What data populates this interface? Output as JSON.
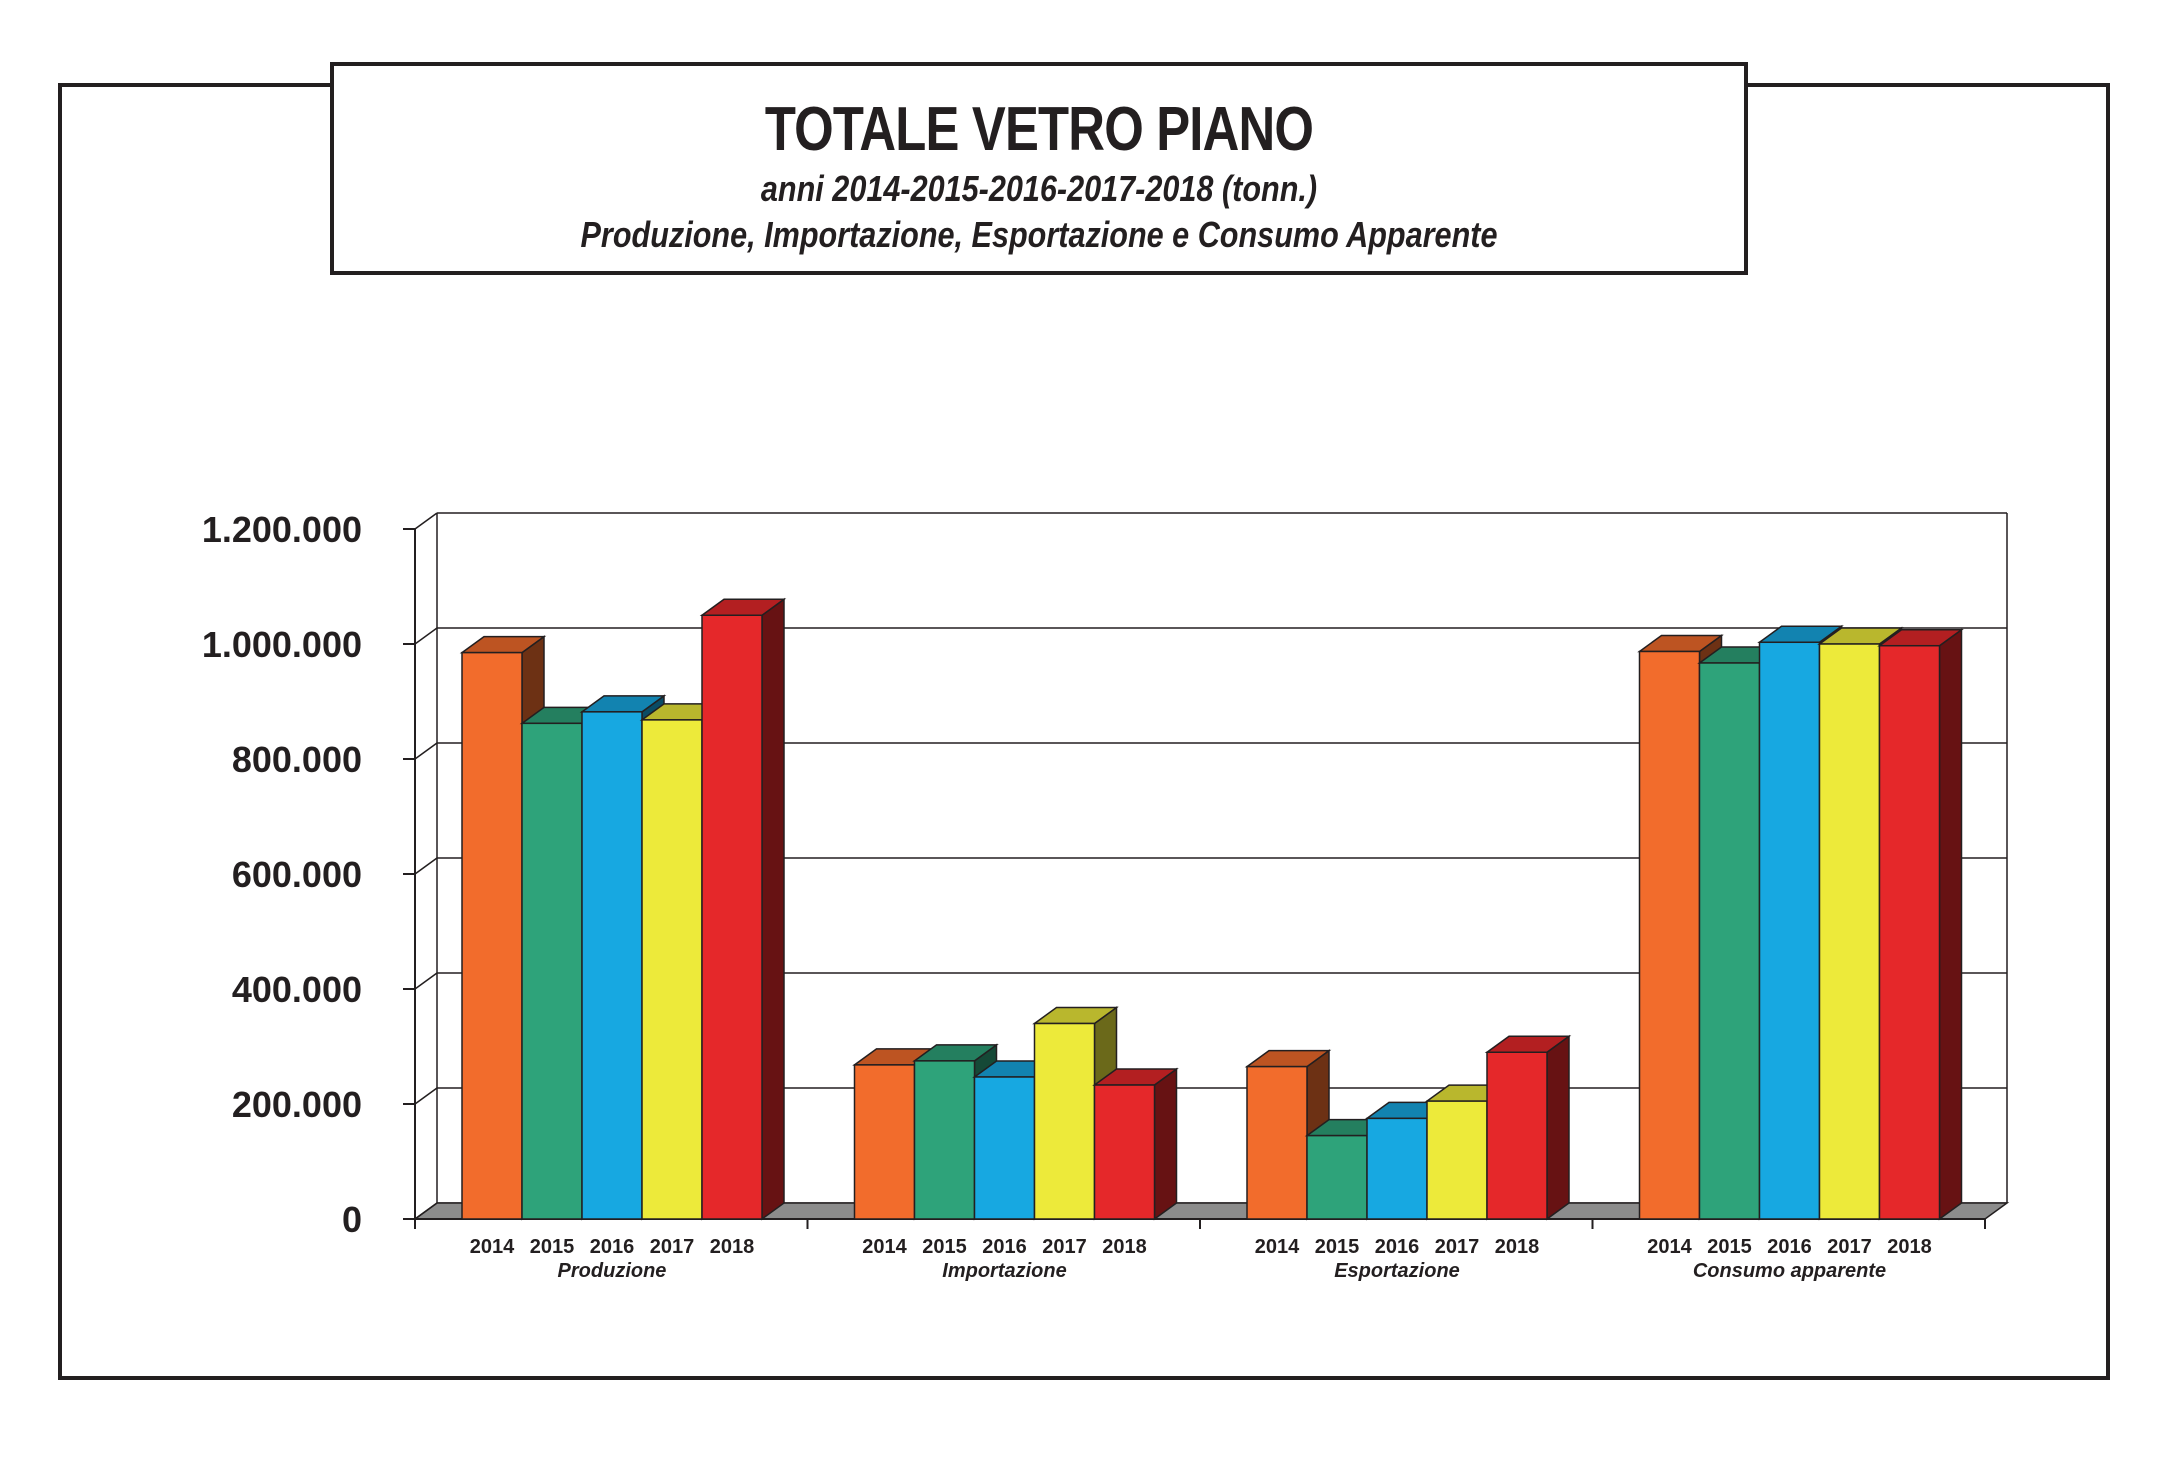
{
  "header": {
    "title": "TOTALE VETRO PIANO",
    "subtitle_1": "anni 2014-2015-2016-2017-2018 (tonn.)",
    "subtitle_2": "Produzione, Importazione, Esportazione e Consumo Apparente"
  },
  "chart_data": {
    "type": "bar",
    "title": "TOTALE VETRO PIANO",
    "subtitle": "anni 2014-2015-2016-2017-2018 (tonn.) — Produzione, Importazione, Esportazione e Consumo Apparente",
    "xlabel": "",
    "ylabel": "",
    "ylim": [
      0,
      1200000
    ],
    "yticks": [
      0,
      200000,
      400000,
      600000,
      800000,
      1000000,
      1200000
    ],
    "ytick_labels": [
      "0",
      "200.000",
      "400.000",
      "600.000",
      "800.000",
      "1.000.000",
      "1.200.000"
    ],
    "grid": true,
    "style": "3d",
    "groups": [
      "Produzione",
      "Importazione",
      "Esportazione",
      "Consumo apparente"
    ],
    "years": [
      "2014",
      "2015",
      "2016",
      "2017",
      "2018"
    ],
    "colors": {
      "2014": "#f26c2c",
      "2015": "#2ea37a",
      "2016": "#17a8e1",
      "2017": "#edea3a",
      "2018": "#e5282a"
    },
    "series": [
      {
        "name": "2014",
        "values": [
          985000,
          268000,
          265000,
          987000
        ]
      },
      {
        "name": "2015",
        "values": [
          862000,
          275000,
          145000,
          967000
        ]
      },
      {
        "name": "2016",
        "values": [
          882000,
          247000,
          175000,
          1003000
        ]
      },
      {
        "name": "2017",
        "values": [
          868000,
          340000,
          205000,
          1000000
        ]
      },
      {
        "name": "2018",
        "values": [
          1050000,
          233000,
          290000,
          997000
        ]
      }
    ]
  }
}
